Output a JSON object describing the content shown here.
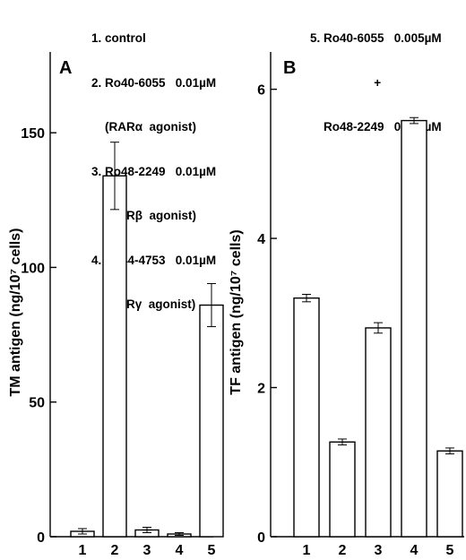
{
  "legend_left": [
    "1. control",
    "2. Ro40-6055   0.01µM",
    "    (RARα  agonist)",
    "3. Ro48-2249   0.01µM",
    "    (RARβ  agonist)",
    "4. Ro44-4753   0.01µM",
    "    (RARγ  agonist)"
  ],
  "legend_right": [
    "5. Ro40-6055   0.005µM",
    "                   +",
    "    Ro48-2249   0.005µM"
  ],
  "chart_data": [
    {
      "type": "bar",
      "panel_label": "A",
      "ylabel": "TM antigen (ng/10⁷ cells)",
      "categories": [
        "1",
        "2",
        "3",
        "4",
        "5"
      ],
      "values": [
        2,
        134,
        2.5,
        1,
        86
      ],
      "errors": [
        1,
        12.5,
        1,
        0.5,
        8
      ],
      "ylim": [
        0,
        180
      ],
      "yticks": [
        0,
        50,
        100,
        150
      ],
      "ytick_labels": [
        "0",
        "50",
        "100",
        "150"
      ]
    },
    {
      "type": "bar",
      "panel_label": "B",
      "ylabel": "TF antigen (ng/10⁷ cells)",
      "categories": [
        "1",
        "2",
        "3",
        "4",
        "5"
      ],
      "values": [
        3.2,
        1.27,
        2.8,
        5.58,
        1.15
      ],
      "errors": [
        0.05,
        0.04,
        0.07,
        0.04,
        0.04
      ],
      "ylim": [
        0,
        6.5
      ],
      "yticks": [
        0,
        2,
        4,
        6
      ],
      "ytick_labels": [
        "0",
        "2",
        "4",
        "6"
      ]
    }
  ]
}
